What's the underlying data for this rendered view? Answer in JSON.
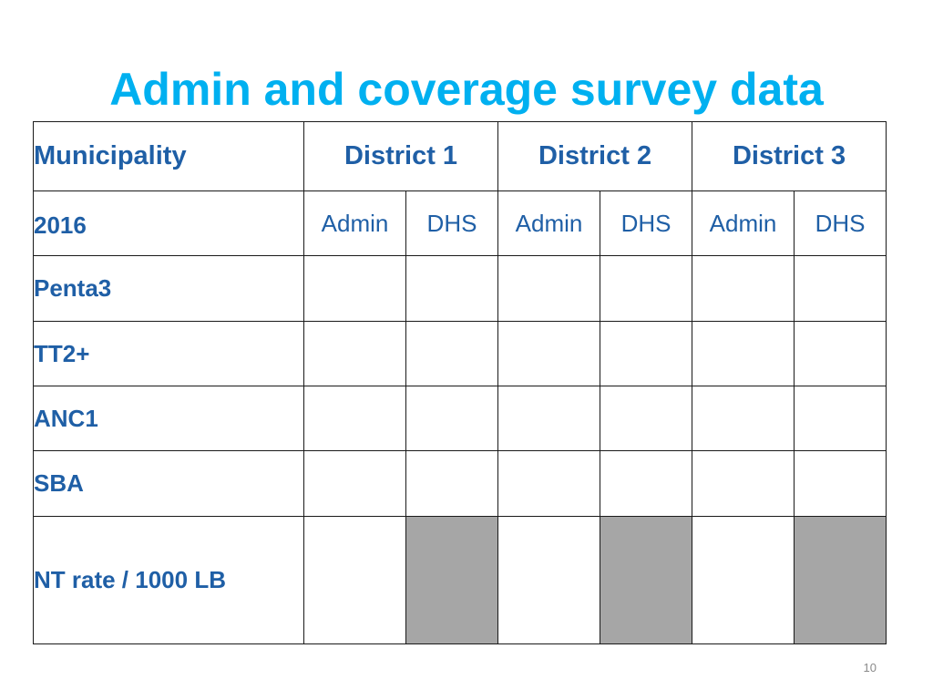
{
  "slide": {
    "title": "Admin and coverage survey data",
    "page_number": "10"
  },
  "table": {
    "header_label": "Municipality",
    "districts": [
      "District 1",
      "District 2",
      "District 3"
    ],
    "subheader_label": "2016",
    "subheaders": [
      "Admin",
      "DHS",
      "Admin",
      "DHS",
      "Admin",
      "DHS"
    ],
    "rows": [
      {
        "label": "Penta3",
        "cells": [
          "",
          "",
          "",
          "",
          "",
          ""
        ]
      },
      {
        "label": "TT2+",
        "cells": [
          "",
          "",
          "",
          "",
          "",
          ""
        ]
      },
      {
        "label": "ANC1",
        "cells": [
          "",
          "",
          "",
          "",
          "",
          ""
        ]
      },
      {
        "label": "SBA",
        "cells": [
          "",
          "",
          "",
          "",
          "",
          ""
        ]
      },
      {
        "label": "NT rate / 1000 LB",
        "cells": [
          "",
          "",
          "",
          "",
          "",
          ""
        ],
        "shaded_columns": [
          "DHS"
        ]
      }
    ],
    "colors": {
      "title": "#00b0f0",
      "text": "#1f5fa6",
      "border": "#1a1a1a",
      "shaded_cell": "#a6a6a6"
    }
  }
}
